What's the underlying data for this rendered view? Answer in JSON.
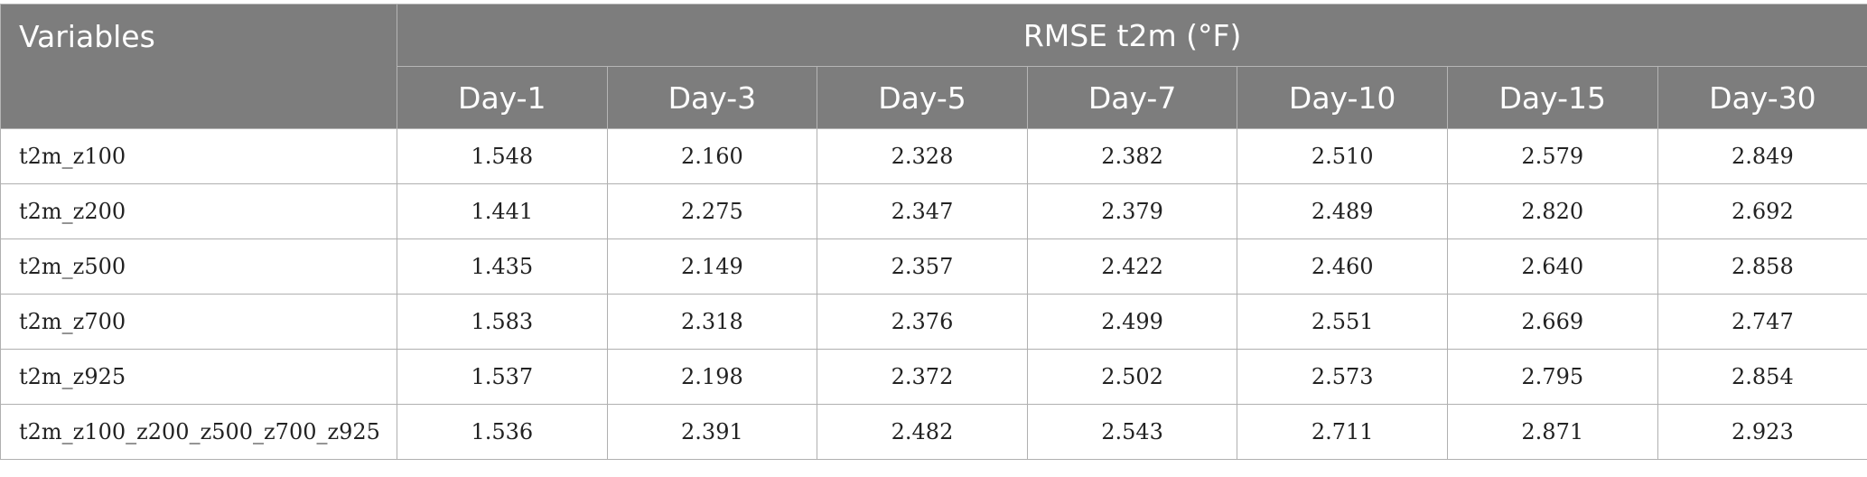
{
  "header": {
    "variables_label": "Variables",
    "group_label": "RMSE t2m (°F)",
    "days": [
      "Day-1",
      "Day-3",
      "Day-5",
      "Day-7",
      "Day-10",
      "Day-15",
      "Day-30"
    ]
  },
  "rows": [
    {
      "variable": "t2m_z100",
      "values": [
        "1.548",
        "2.160",
        "2.328",
        "2.382",
        "2.510",
        "2.579",
        "2.849"
      ]
    },
    {
      "variable": "t2m_z200",
      "values": [
        "1.441",
        "2.275",
        "2.347",
        "2.379",
        "2.489",
        "2.820",
        "2.692"
      ]
    },
    {
      "variable": "t2m_z500",
      "values": [
        "1.435",
        "2.149",
        "2.357",
        "2.422",
        "2.460",
        "2.640",
        "2.858"
      ]
    },
    {
      "variable": "t2m_z700",
      "values": [
        "1.583",
        "2.318",
        "2.376",
        "2.499",
        "2.551",
        "2.669",
        "2.747"
      ]
    },
    {
      "variable": "t2m_z925",
      "values": [
        "1.537",
        "2.198",
        "2.372",
        "2.502",
        "2.573",
        "2.795",
        "2.854"
      ]
    },
    {
      "variable": "t2m_z100_z200_z500_z700_z925",
      "values": [
        "1.536",
        "2.391",
        "2.482",
        "2.543",
        "2.711",
        "2.871",
        "2.923"
      ]
    }
  ],
  "colors": {
    "header_bg": "#7d7d7d",
    "header_text": "#ffffff",
    "grid": "#b0b0b0"
  }
}
